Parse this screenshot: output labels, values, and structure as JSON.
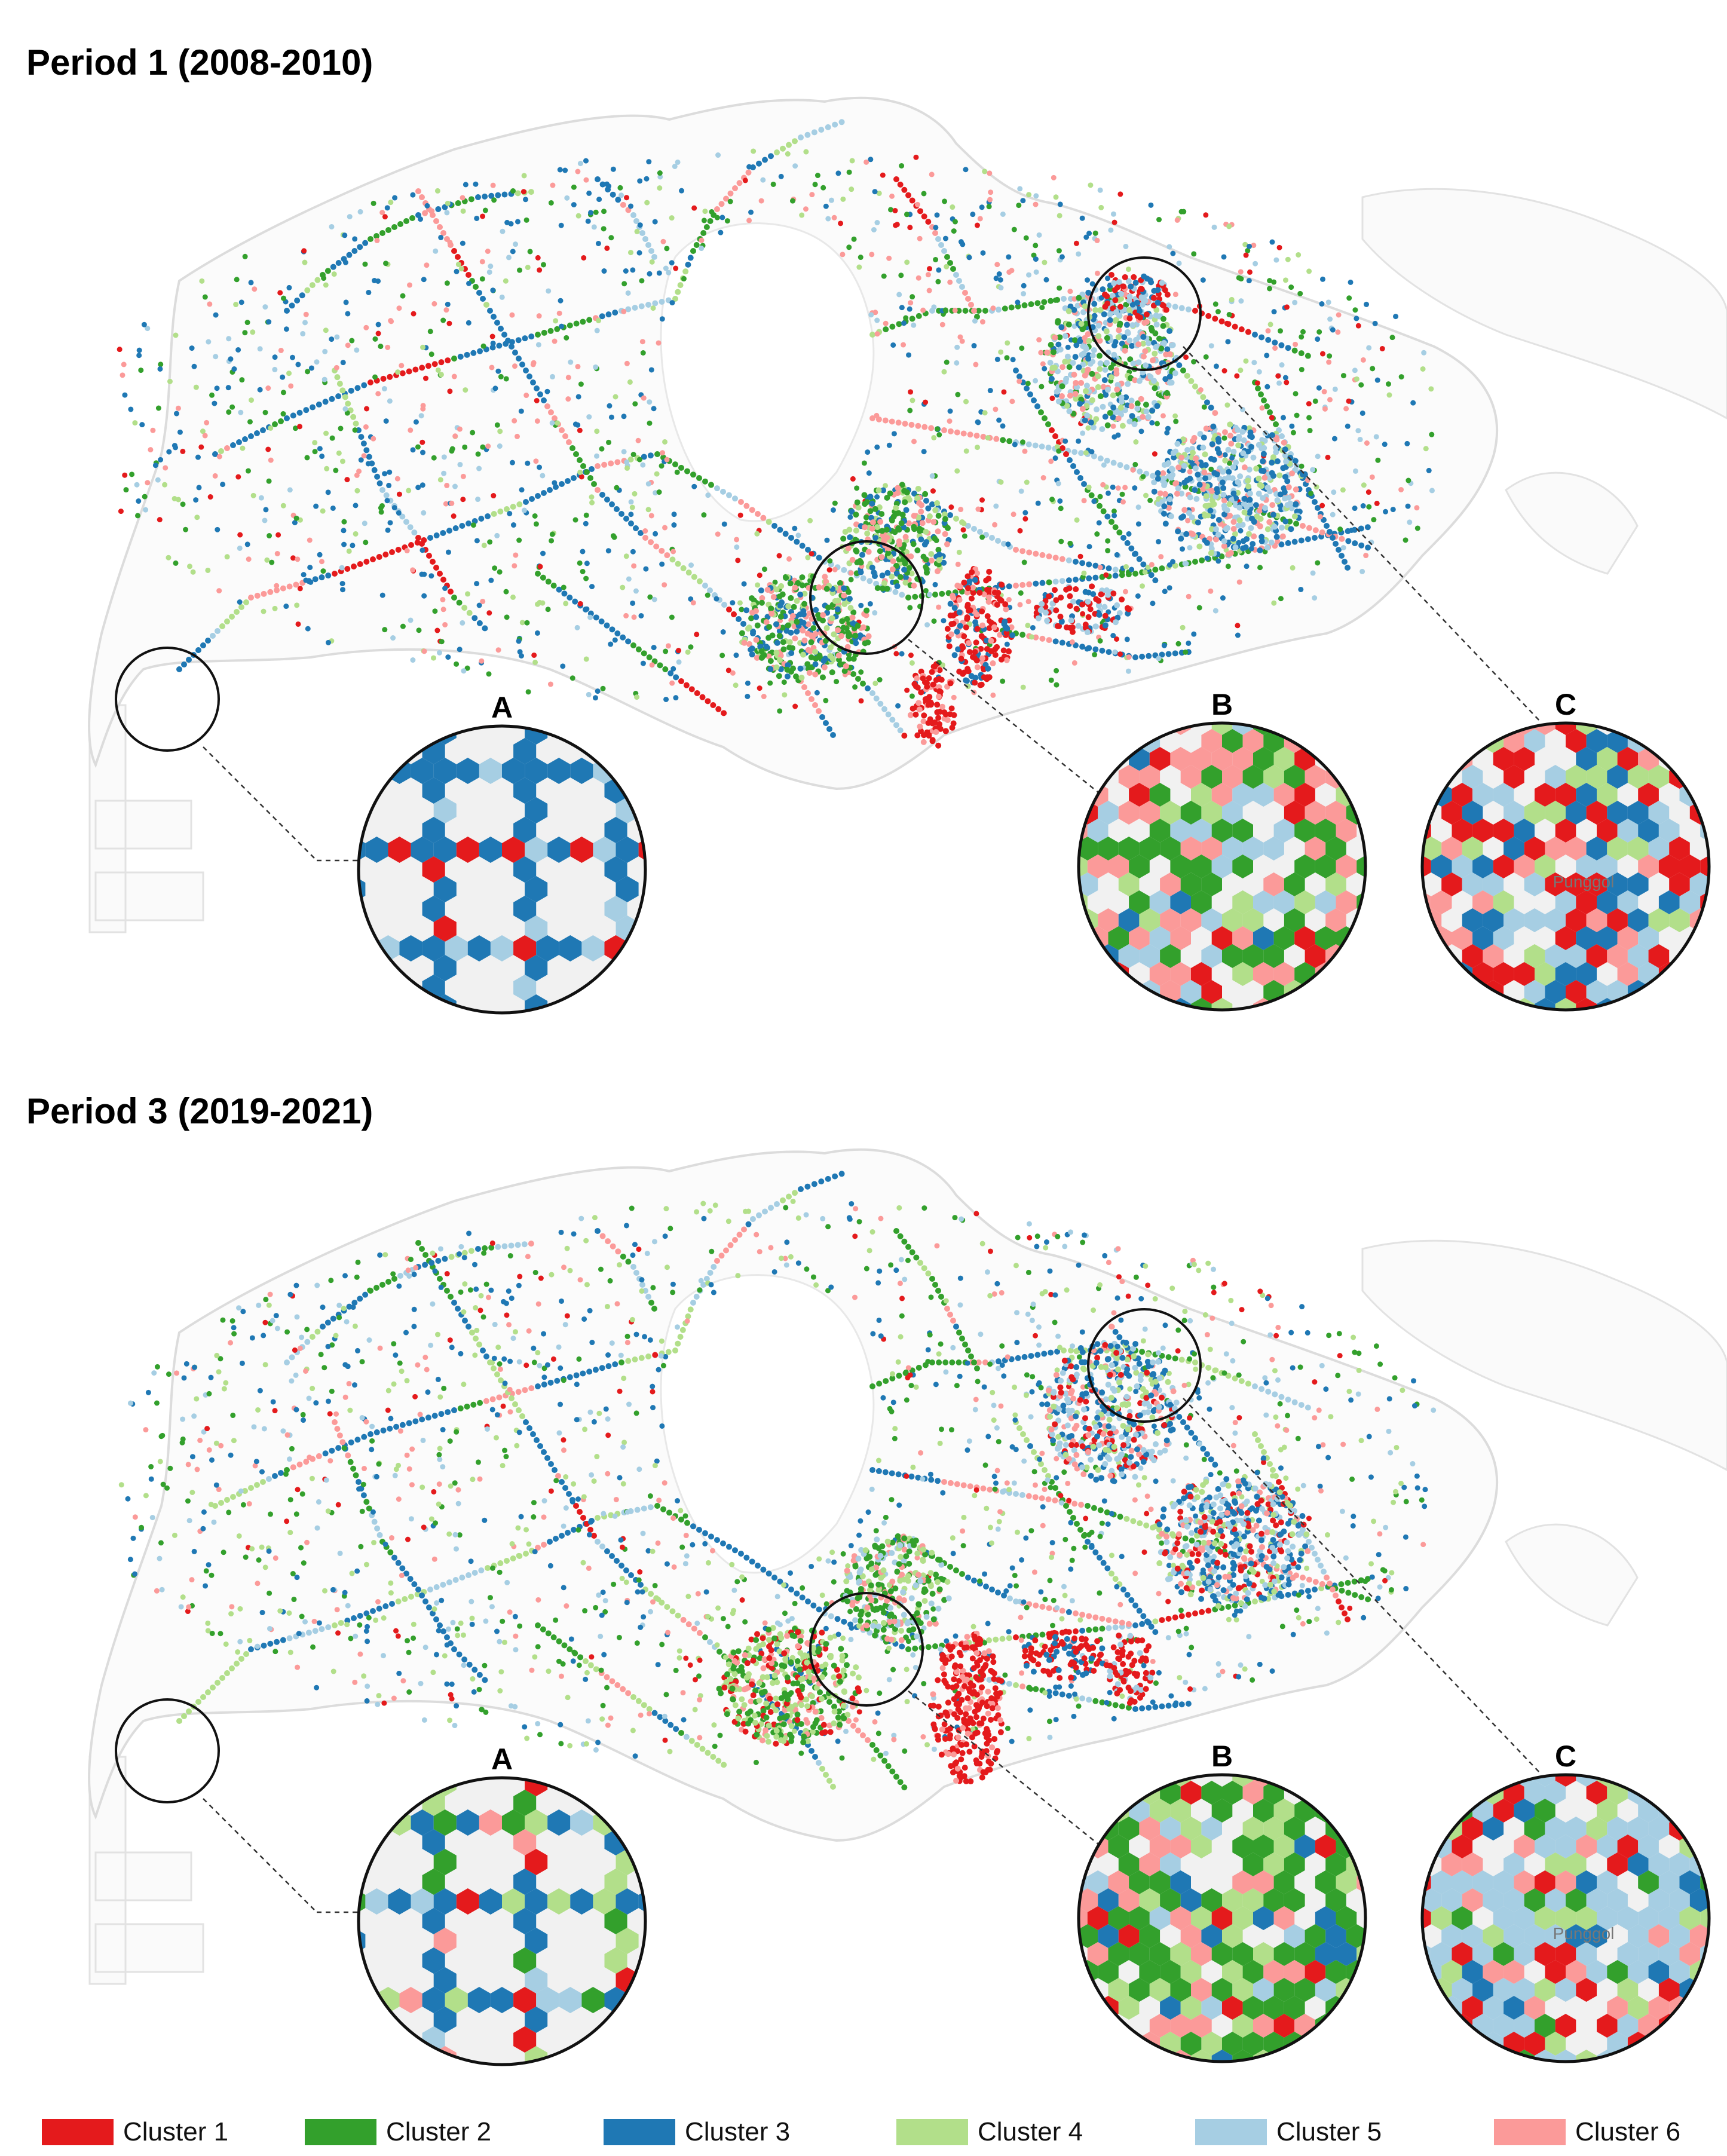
{
  "panels": [
    {
      "title": "Period 1 (2008-2010)"
    },
    {
      "title": "Period 3 (2019-2021)"
    }
  ],
  "inset_labels": [
    "A",
    "B",
    "C"
  ],
  "inset_c_place_text": "Punggol",
  "clusters": [
    {
      "label": "Cluster 1",
      "color": "#e41a1c"
    },
    {
      "label": "Cluster 2",
      "color": "#33a02c"
    },
    {
      "label": "Cluster 3",
      "color": "#1f78b4"
    },
    {
      "label": "Cluster 4",
      "color": "#b2df8a"
    },
    {
      "label": "Cluster 5",
      "color": "#a6cee3"
    },
    {
      "label": "Cluster 6",
      "color": "#fb9a99"
    }
  ]
}
